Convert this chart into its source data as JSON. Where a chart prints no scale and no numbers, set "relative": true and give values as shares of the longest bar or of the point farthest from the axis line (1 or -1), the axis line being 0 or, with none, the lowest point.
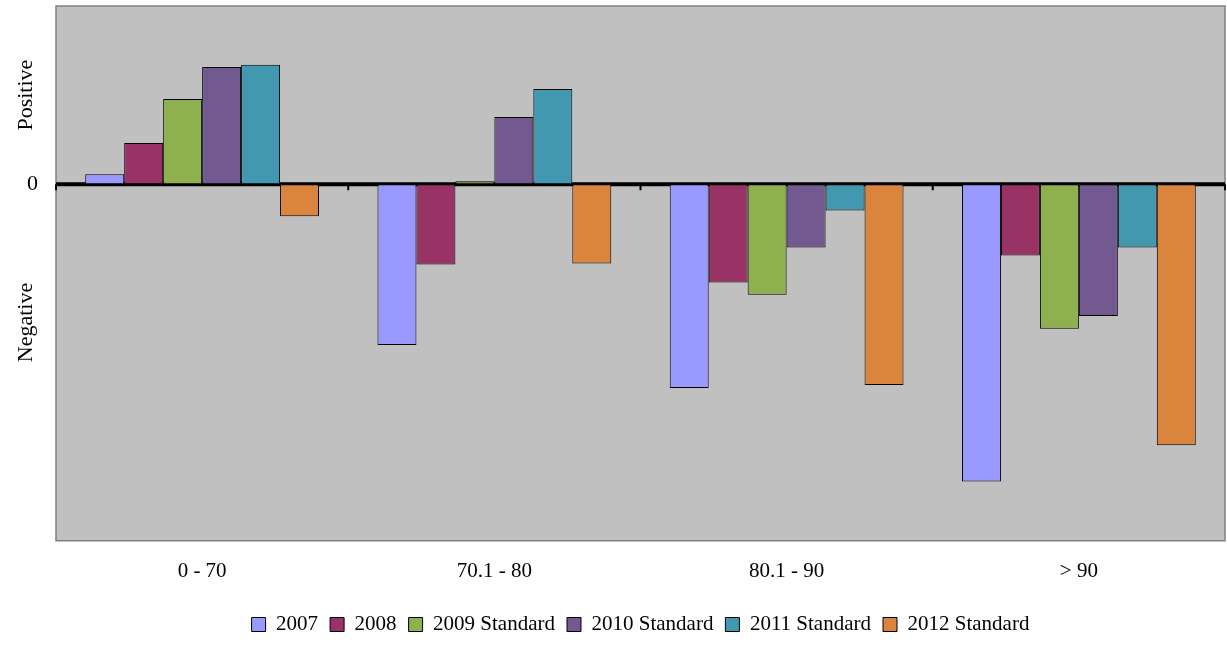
{
  "chart_data": {
    "type": "bar",
    "relative": true,
    "grid": false,
    "legend": "bottom",
    "categories": [
      "0 - 70",
      "70.1 - 80",
      "80.1 - 90",
      "> 90"
    ],
    "annotations": [
      "Positive",
      "Negative",
      "0"
    ],
    "series": [
      {
        "name": "2007",
        "color": "#9999ff",
        "values": [
          0.034,
          -0.541,
          -0.686,
          -1
        ]
      },
      {
        "name": "2008",
        "color": "#993366",
        "values": [
          0.139,
          -0.27,
          -0.331,
          -0.24
        ]
      },
      {
        "name": "2009 Standard",
        "color": "#8eb04e",
        "values": [
          0.287,
          0.01,
          -0.372,
          -0.486
        ]
      },
      {
        "name": "2010 Standard",
        "color": "#725990",
        "values": [
          0.395,
          0.226,
          -0.213,
          -0.443
        ]
      },
      {
        "name": "2011 Standard",
        "color": "#4198af",
        "values": [
          0.402,
          0.321,
          -0.088,
          -0.213
        ]
      },
      {
        "name": "2012 Standard",
        "color": "#db843d",
        "values": [
          -0.108,
          -0.267,
          -0.676,
          -0.878
        ]
      }
    ]
  }
}
